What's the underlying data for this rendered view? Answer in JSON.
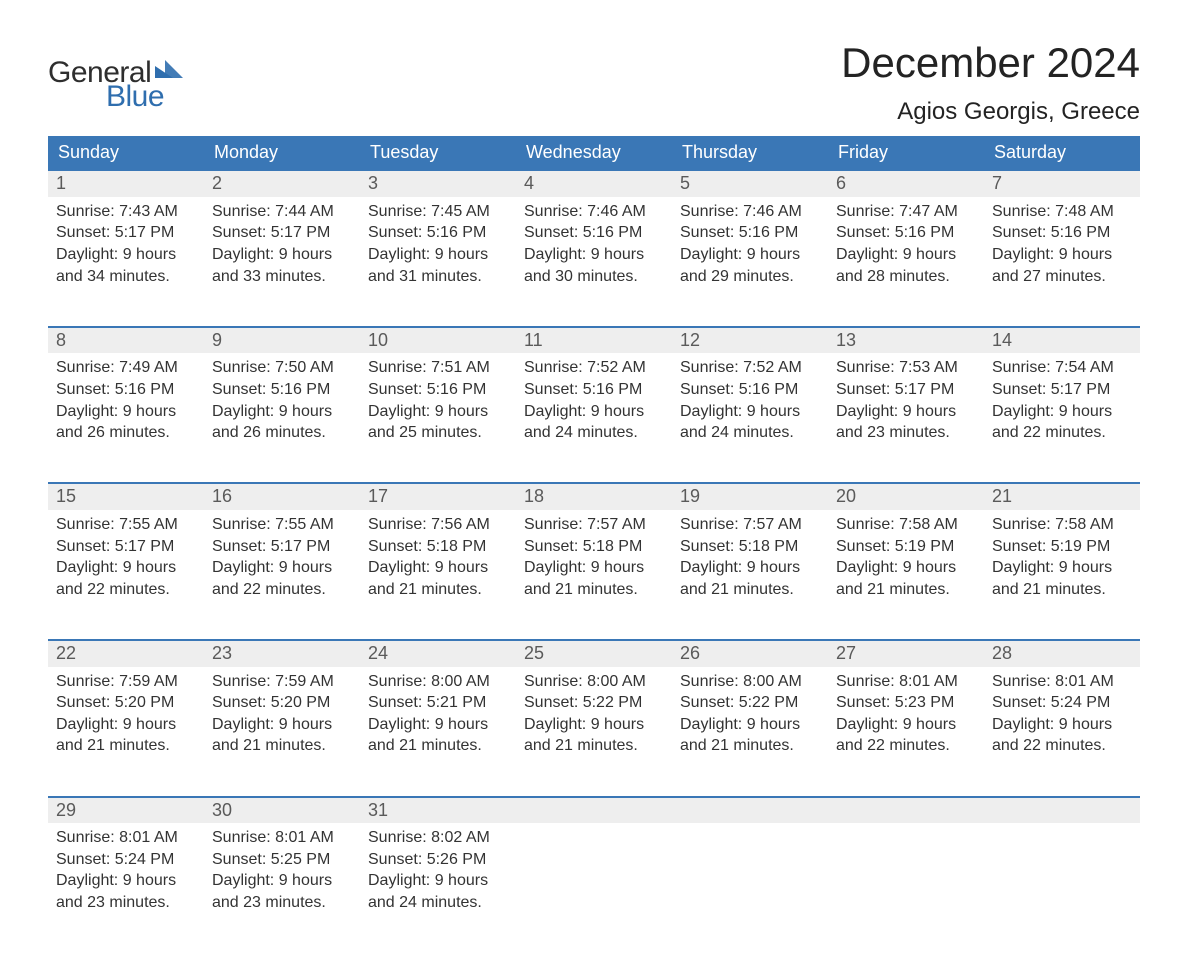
{
  "brand": {
    "part1": "General",
    "part2": "Blue",
    "color_dark": "#2e2e2e",
    "color_blue": "#2f6eae"
  },
  "title": "December 2024",
  "location": "Agios Georgis, Greece",
  "colors": {
    "header_bg": "#3a77b6",
    "header_text": "#ffffff",
    "daynum_bg": "#eeeeee",
    "daynum_border": "#3a77b6",
    "daynum_text": "#5a5a5a",
    "body_text": "#333333",
    "page_bg": "#ffffff"
  },
  "fonts": {
    "title_size_pt": 32,
    "location_size_pt": 18,
    "header_size_pt": 14,
    "cell_size_pt": 12
  },
  "weekdays": [
    "Sunday",
    "Monday",
    "Tuesday",
    "Wednesday",
    "Thursday",
    "Friday",
    "Saturday"
  ],
  "labels": {
    "sunrise": "Sunrise:",
    "sunset": "Sunset:",
    "daylight_prefix": "Daylight:"
  },
  "weeks": [
    [
      {
        "day": "1",
        "sunrise": "7:43 AM",
        "sunset": "5:17 PM",
        "daylight1": "Daylight: 9 hours",
        "daylight2": "and 34 minutes."
      },
      {
        "day": "2",
        "sunrise": "7:44 AM",
        "sunset": "5:17 PM",
        "daylight1": "Daylight: 9 hours",
        "daylight2": "and 33 minutes."
      },
      {
        "day": "3",
        "sunrise": "7:45 AM",
        "sunset": "5:16 PM",
        "daylight1": "Daylight: 9 hours",
        "daylight2": "and 31 minutes."
      },
      {
        "day": "4",
        "sunrise": "7:46 AM",
        "sunset": "5:16 PM",
        "daylight1": "Daylight: 9 hours",
        "daylight2": "and 30 minutes."
      },
      {
        "day": "5",
        "sunrise": "7:46 AM",
        "sunset": "5:16 PM",
        "daylight1": "Daylight: 9 hours",
        "daylight2": "and 29 minutes."
      },
      {
        "day": "6",
        "sunrise": "7:47 AM",
        "sunset": "5:16 PM",
        "daylight1": "Daylight: 9 hours",
        "daylight2": "and 28 minutes."
      },
      {
        "day": "7",
        "sunrise": "7:48 AM",
        "sunset": "5:16 PM",
        "daylight1": "Daylight: 9 hours",
        "daylight2": "and 27 minutes."
      }
    ],
    [
      {
        "day": "8",
        "sunrise": "7:49 AM",
        "sunset": "5:16 PM",
        "daylight1": "Daylight: 9 hours",
        "daylight2": "and 26 minutes."
      },
      {
        "day": "9",
        "sunrise": "7:50 AM",
        "sunset": "5:16 PM",
        "daylight1": "Daylight: 9 hours",
        "daylight2": "and 26 minutes."
      },
      {
        "day": "10",
        "sunrise": "7:51 AM",
        "sunset": "5:16 PM",
        "daylight1": "Daylight: 9 hours",
        "daylight2": "and 25 minutes."
      },
      {
        "day": "11",
        "sunrise": "7:52 AM",
        "sunset": "5:16 PM",
        "daylight1": "Daylight: 9 hours",
        "daylight2": "and 24 minutes."
      },
      {
        "day": "12",
        "sunrise": "7:52 AM",
        "sunset": "5:16 PM",
        "daylight1": "Daylight: 9 hours",
        "daylight2": "and 24 minutes."
      },
      {
        "day": "13",
        "sunrise": "7:53 AM",
        "sunset": "5:17 PM",
        "daylight1": "Daylight: 9 hours",
        "daylight2": "and 23 minutes."
      },
      {
        "day": "14",
        "sunrise": "7:54 AM",
        "sunset": "5:17 PM",
        "daylight1": "Daylight: 9 hours",
        "daylight2": "and 22 minutes."
      }
    ],
    [
      {
        "day": "15",
        "sunrise": "7:55 AM",
        "sunset": "5:17 PM",
        "daylight1": "Daylight: 9 hours",
        "daylight2": "and 22 minutes."
      },
      {
        "day": "16",
        "sunrise": "7:55 AM",
        "sunset": "5:17 PM",
        "daylight1": "Daylight: 9 hours",
        "daylight2": "and 22 minutes."
      },
      {
        "day": "17",
        "sunrise": "7:56 AM",
        "sunset": "5:18 PM",
        "daylight1": "Daylight: 9 hours",
        "daylight2": "and 21 minutes."
      },
      {
        "day": "18",
        "sunrise": "7:57 AM",
        "sunset": "5:18 PM",
        "daylight1": "Daylight: 9 hours",
        "daylight2": "and 21 minutes."
      },
      {
        "day": "19",
        "sunrise": "7:57 AM",
        "sunset": "5:18 PM",
        "daylight1": "Daylight: 9 hours",
        "daylight2": "and 21 minutes."
      },
      {
        "day": "20",
        "sunrise": "7:58 AM",
        "sunset": "5:19 PM",
        "daylight1": "Daylight: 9 hours",
        "daylight2": "and 21 minutes."
      },
      {
        "day": "21",
        "sunrise": "7:58 AM",
        "sunset": "5:19 PM",
        "daylight1": "Daylight: 9 hours",
        "daylight2": "and 21 minutes."
      }
    ],
    [
      {
        "day": "22",
        "sunrise": "7:59 AM",
        "sunset": "5:20 PM",
        "daylight1": "Daylight: 9 hours",
        "daylight2": "and 21 minutes."
      },
      {
        "day": "23",
        "sunrise": "7:59 AM",
        "sunset": "5:20 PM",
        "daylight1": "Daylight: 9 hours",
        "daylight2": "and 21 minutes."
      },
      {
        "day": "24",
        "sunrise": "8:00 AM",
        "sunset": "5:21 PM",
        "daylight1": "Daylight: 9 hours",
        "daylight2": "and 21 minutes."
      },
      {
        "day": "25",
        "sunrise": "8:00 AM",
        "sunset": "5:22 PM",
        "daylight1": "Daylight: 9 hours",
        "daylight2": "and 21 minutes."
      },
      {
        "day": "26",
        "sunrise": "8:00 AM",
        "sunset": "5:22 PM",
        "daylight1": "Daylight: 9 hours",
        "daylight2": "and 21 minutes."
      },
      {
        "day": "27",
        "sunrise": "8:01 AM",
        "sunset": "5:23 PM",
        "daylight1": "Daylight: 9 hours",
        "daylight2": "and 22 minutes."
      },
      {
        "day": "28",
        "sunrise": "8:01 AM",
        "sunset": "5:24 PM",
        "daylight1": "Daylight: 9 hours",
        "daylight2": "and 22 minutes."
      }
    ],
    [
      {
        "day": "29",
        "sunrise": "8:01 AM",
        "sunset": "5:24 PM",
        "daylight1": "Daylight: 9 hours",
        "daylight2": "and 23 minutes."
      },
      {
        "day": "30",
        "sunrise": "8:01 AM",
        "sunset": "5:25 PM",
        "daylight1": "Daylight: 9 hours",
        "daylight2": "and 23 minutes."
      },
      {
        "day": "31",
        "sunrise": "8:02 AM",
        "sunset": "5:26 PM",
        "daylight1": "Daylight: 9 hours",
        "daylight2": "and 24 minutes."
      },
      null,
      null,
      null,
      null
    ]
  ]
}
